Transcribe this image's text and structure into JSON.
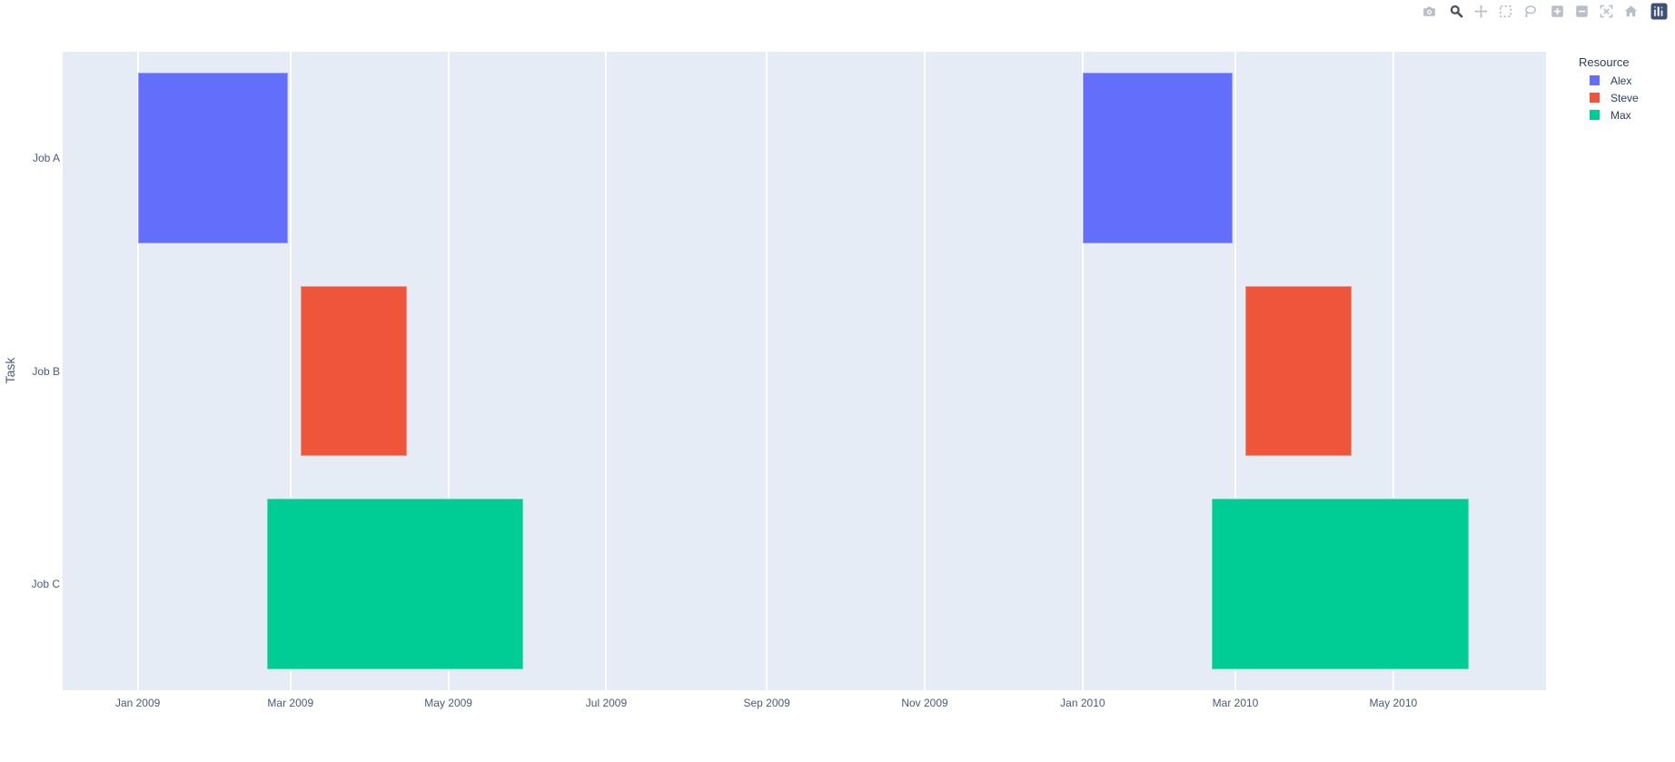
{
  "modebar": {
    "active_tool": "zoom",
    "icon_names": [
      "camera-icon",
      "zoom-icon",
      "pan-icon",
      "box-select-icon",
      "lasso-select-icon",
      "zoom-in-icon",
      "zoom-out-icon",
      "autoscale-icon",
      "reset-axes-icon",
      "plotly-logo-icon"
    ]
  },
  "legend": {
    "title": "Resource",
    "items": [
      {
        "label": "Alex",
        "color": "#636EFA"
      },
      {
        "label": "Steve",
        "color": "#EF553B"
      },
      {
        "label": "Max",
        "color": "#00CC96"
      }
    ]
  },
  "chart_data": {
    "type": "bar",
    "subtype": "gantt-timeline",
    "title": "",
    "xlabel": "",
    "ylabel": "Task",
    "categories": [
      "Job A",
      "Job B",
      "Job C"
    ],
    "x_ticks": [
      {
        "label": "Jan 2009",
        "date": "2009-01-01"
      },
      {
        "label": "Mar 2009",
        "date": "2009-03-01"
      },
      {
        "label": "May 2009",
        "date": "2009-05-01"
      },
      {
        "label": "Jul 2009",
        "date": "2009-07-01"
      },
      {
        "label": "Sep 2009",
        "date": "2009-09-01"
      },
      {
        "label": "Nov 2009",
        "date": "2009-11-01"
      },
      {
        "label": "Jan 2010",
        "date": "2010-01-01"
      },
      {
        "label": "Mar 2010",
        "date": "2010-03-01"
      },
      {
        "label": "May 2010",
        "date": "2010-05-01"
      }
    ],
    "x_range": [
      "2008-12-03",
      "2010-06-29"
    ],
    "tasks": [
      {
        "task": "Job A",
        "start": "2009-01-01",
        "finish": "2009-02-28",
        "resource": "Alex"
      },
      {
        "task": "Job B",
        "start": "2009-03-05",
        "finish": "2009-04-15",
        "resource": "Steve"
      },
      {
        "task": "Job C",
        "start": "2009-02-20",
        "finish": "2009-05-30",
        "resource": "Max"
      },
      {
        "task": "Job A",
        "start": "2010-01-01",
        "finish": "2010-02-28",
        "resource": "Alex"
      },
      {
        "task": "Job B",
        "start": "2010-03-05",
        "finish": "2010-04-15",
        "resource": "Steve"
      },
      {
        "task": "Job C",
        "start": "2010-02-20",
        "finish": "2010-05-30",
        "resource": "Max"
      }
    ],
    "resource_colors": {
      "Alex": "#636EFA",
      "Steve": "#EF553B",
      "Max": "#00CC96"
    },
    "plot_bgcolor": "#E5ECF6",
    "grid_color": "#FFFFFF",
    "grid": "vertical-only",
    "bar_width_frac": 0.8,
    "legend_position": "right"
  }
}
